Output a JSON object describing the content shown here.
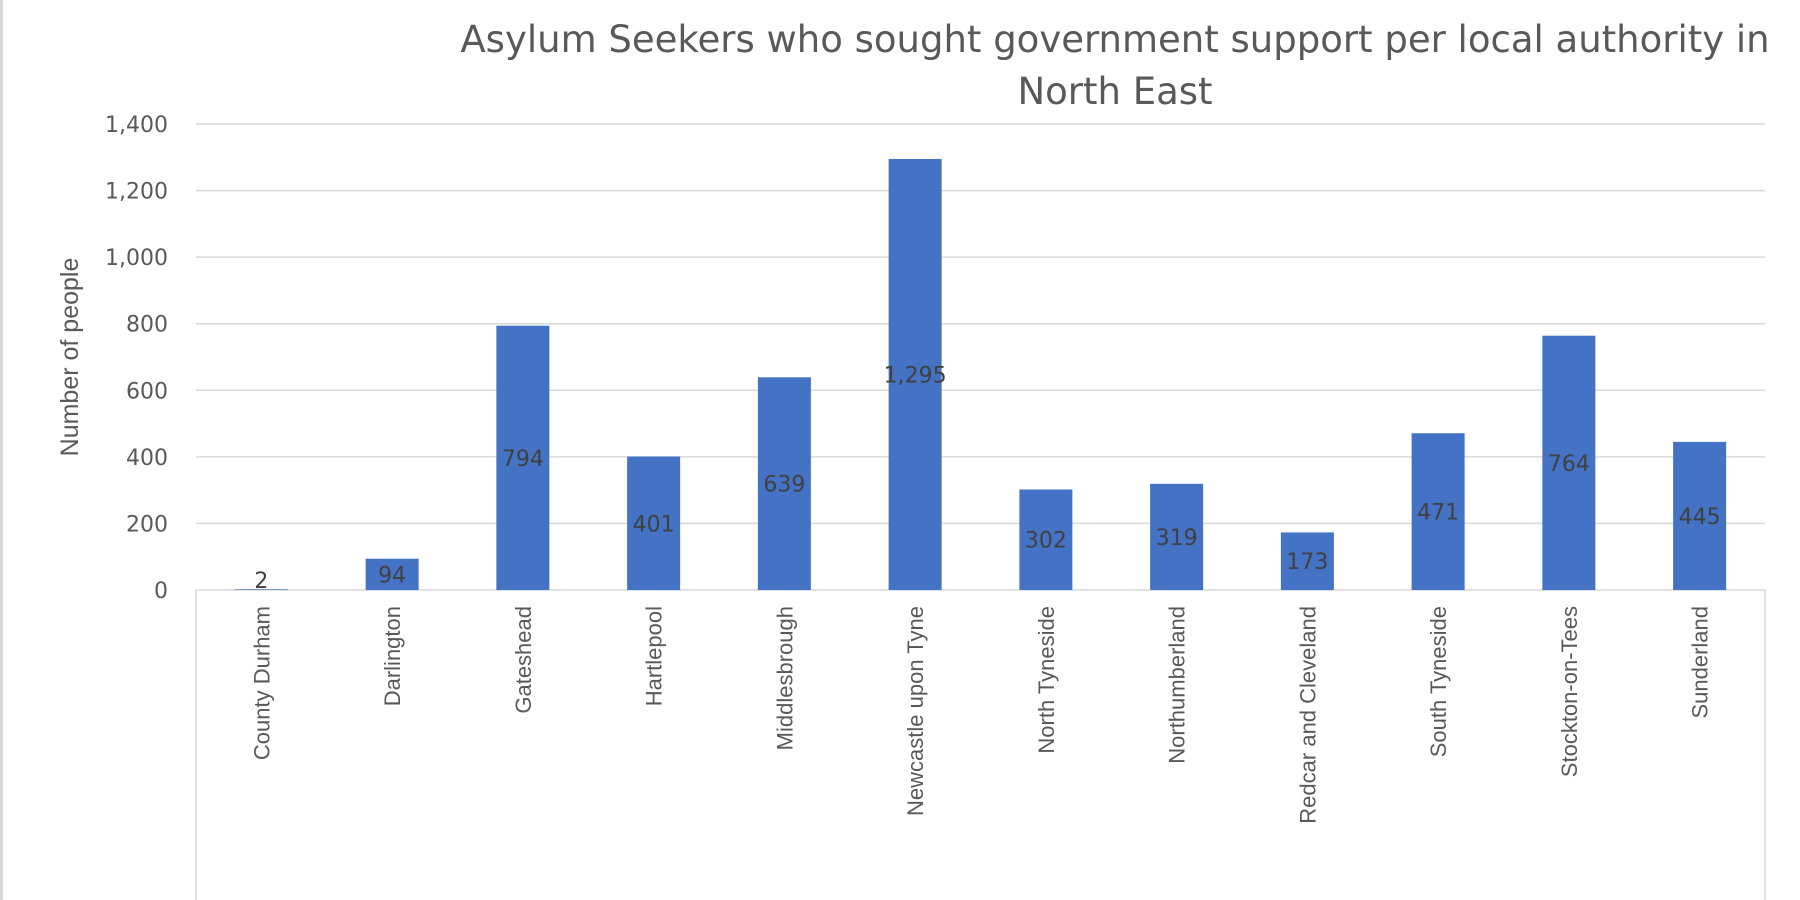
{
  "chart_data": {
    "type": "bar",
    "title_lines": [
      "Asylum Seekers who sought government support per local authority in",
      "North East"
    ],
    "xlabel": "",
    "ylabel": "Number of people",
    "ylim": [
      0,
      1400
    ],
    "yticks": [
      "0",
      "200",
      "400",
      "600",
      "800",
      "1,000",
      "1,200",
      "1,400"
    ],
    "grid": true,
    "legend": "none",
    "bar_color": "#4472C4",
    "categories": [
      "County Durham",
      "Darlington",
      "Gateshead",
      "Hartlepool",
      "Middlesbrough",
      "Newcastle upon Tyne",
      "North Tyneside",
      "Northumberland",
      "Redcar and Cleveland",
      "South Tyneside",
      "Stockton-on-Tees",
      "Sunderland"
    ],
    "values": [
      2,
      94,
      794,
      401,
      639,
      1295,
      302,
      319,
      173,
      471,
      764,
      445
    ],
    "data_labels": [
      "2",
      "94",
      "794",
      "401",
      "639",
      "1,295",
      "302",
      "319",
      "173",
      "471",
      "764",
      "445"
    ]
  }
}
